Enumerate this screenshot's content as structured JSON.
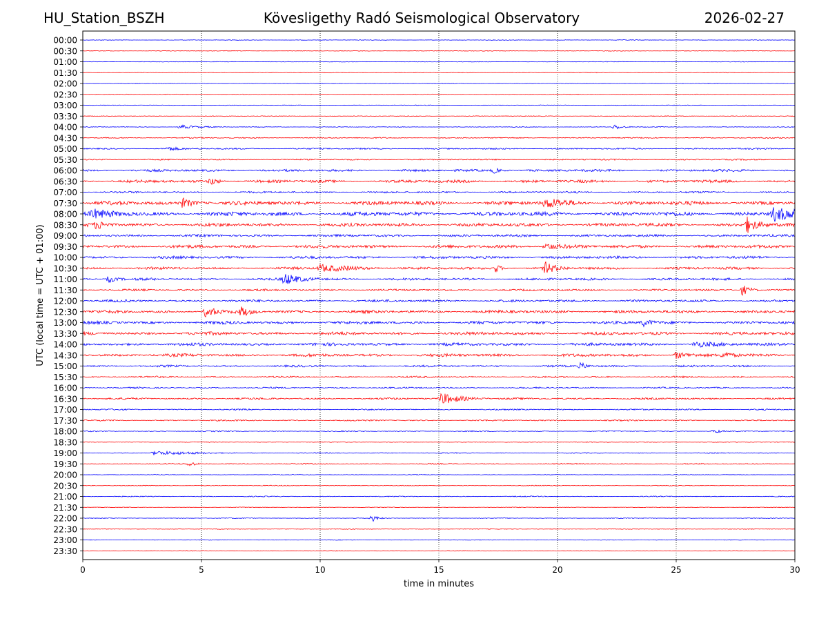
{
  "header": {
    "station": "HU_Station_BSZH",
    "observatory": "Kövesligethy Radó Seismological Observatory",
    "date": "2026-02-27"
  },
  "chart_data": {
    "type": "line",
    "title": "Kövesligethy Radó Seismological Observatory",
    "xlabel": "time in minutes",
    "ylabel": "UTC (local time = UTC + 01:00)",
    "xlim": [
      0,
      30
    ],
    "xticks": [
      "0",
      "5",
      "10",
      "15",
      "20",
      "25",
      "30"
    ],
    "grid_x": [
      5,
      10,
      15,
      20,
      25
    ],
    "colors": {
      "even_rows": "#0000ff",
      "odd_rows": "#ff0000",
      "grid": "#000000"
    },
    "rows": [
      "00:00",
      "00:30",
      "01:00",
      "01:30",
      "02:00",
      "02:30",
      "03:00",
      "03:30",
      "04:00",
      "04:30",
      "05:00",
      "05:30",
      "06:00",
      "06:30",
      "07:00",
      "07:30",
      "08:00",
      "08:30",
      "09:00",
      "09:30",
      "10:00",
      "10:30",
      "11:00",
      "11:30",
      "12:00",
      "12:30",
      "13:00",
      "13:30",
      "14:00",
      "14:30",
      "15:00",
      "15:30",
      "16:00",
      "16:30",
      "17:00",
      "17:30",
      "18:00",
      "18:30",
      "19:00",
      "19:30",
      "20:00",
      "20:30",
      "21:00",
      "21:30",
      "22:00",
      "22:30",
      "23:00",
      "23:30"
    ],
    "noise_level": [
      0.4,
      0.4,
      0.4,
      0.4,
      0.4,
      0.45,
      0.4,
      0.45,
      0.5,
      0.8,
      1.0,
      0.9,
      1.6,
      1.9,
      1.3,
      2.6,
      2.8,
      2.3,
      1.6,
      2.1,
      1.8,
      1.7,
      1.6,
      1.3,
      1.6,
      2.0,
      2.0,
      2.1,
      2.0,
      2.0,
      1.3,
      1.1,
      1.0,
      1.2,
      0.9,
      0.9,
      0.7,
      0.5,
      0.6,
      0.7,
      0.4,
      0.5,
      0.6,
      0.4,
      0.5,
      0.5,
      0.4,
      0.4
    ],
    "events": [
      {
        "row": 8,
        "t": 4.1,
        "amp": 3,
        "dur": 0.6
      },
      {
        "row": 8,
        "t": 22.4,
        "amp": 4,
        "dur": 0.3
      },
      {
        "row": 10,
        "t": 3.6,
        "amp": 3,
        "dur": 0.3
      },
      {
        "row": 12,
        "t": 17.3,
        "amp": 4,
        "dur": 0.3
      },
      {
        "row": 13,
        "t": 5.4,
        "amp": 5,
        "dur": 0.3
      },
      {
        "row": 15,
        "t": 4.2,
        "amp": 6,
        "dur": 0.5
      },
      {
        "row": 15,
        "t": 19.5,
        "amp": 6,
        "dur": 0.8
      },
      {
        "row": 16,
        "t": 29.1,
        "amp": 10,
        "dur": 0.9
      },
      {
        "row": 16,
        "t": 0.4,
        "amp": 5,
        "dur": 0.8
      },
      {
        "row": 17,
        "t": 28.0,
        "amp": 11,
        "dur": 0.4
      },
      {
        "row": 17,
        "t": 0.6,
        "amp": 6,
        "dur": 0.3
      },
      {
        "row": 19,
        "t": 19.5,
        "amp": 5,
        "dur": 0.6
      },
      {
        "row": 21,
        "t": 19.5,
        "amp": 8,
        "dur": 0.4
      },
      {
        "row": 21,
        "t": 10.0,
        "amp": 5,
        "dur": 1.2
      },
      {
        "row": 21,
        "t": 17.4,
        "amp": 6,
        "dur": 0.2
      },
      {
        "row": 22,
        "t": 8.5,
        "amp": 8,
        "dur": 0.6
      },
      {
        "row": 22,
        "t": 1.1,
        "amp": 5,
        "dur": 0.3
      },
      {
        "row": 23,
        "t": 27.8,
        "amp": 8,
        "dur": 0.3
      },
      {
        "row": 25,
        "t": 5.2,
        "amp": 10,
        "dur": 0.3
      },
      {
        "row": 25,
        "t": 6.7,
        "amp": 6,
        "dur": 0.3
      },
      {
        "row": 26,
        "t": 23.6,
        "amp": 5,
        "dur": 0.3
      },
      {
        "row": 28,
        "t": 25.8,
        "amp": 4,
        "dur": 0.6
      },
      {
        "row": 29,
        "t": 25.0,
        "amp": 5,
        "dur": 0.4
      },
      {
        "row": 29,
        "t": 27.0,
        "amp": 5,
        "dur": 0.3
      },
      {
        "row": 30,
        "t": 21.0,
        "amp": 5,
        "dur": 0.2
      },
      {
        "row": 33,
        "t": 15.1,
        "amp": 8,
        "dur": 0.8
      },
      {
        "row": 36,
        "t": 26.6,
        "amp": 4,
        "dur": 0.2
      },
      {
        "row": 38,
        "t": 3.0,
        "amp": 3,
        "dur": 1.4
      },
      {
        "row": 39,
        "t": 4.5,
        "amp": 4,
        "dur": 0.2
      },
      {
        "row": 44,
        "t": 12.2,
        "amp": 5,
        "dur": 0.2
      }
    ]
  }
}
